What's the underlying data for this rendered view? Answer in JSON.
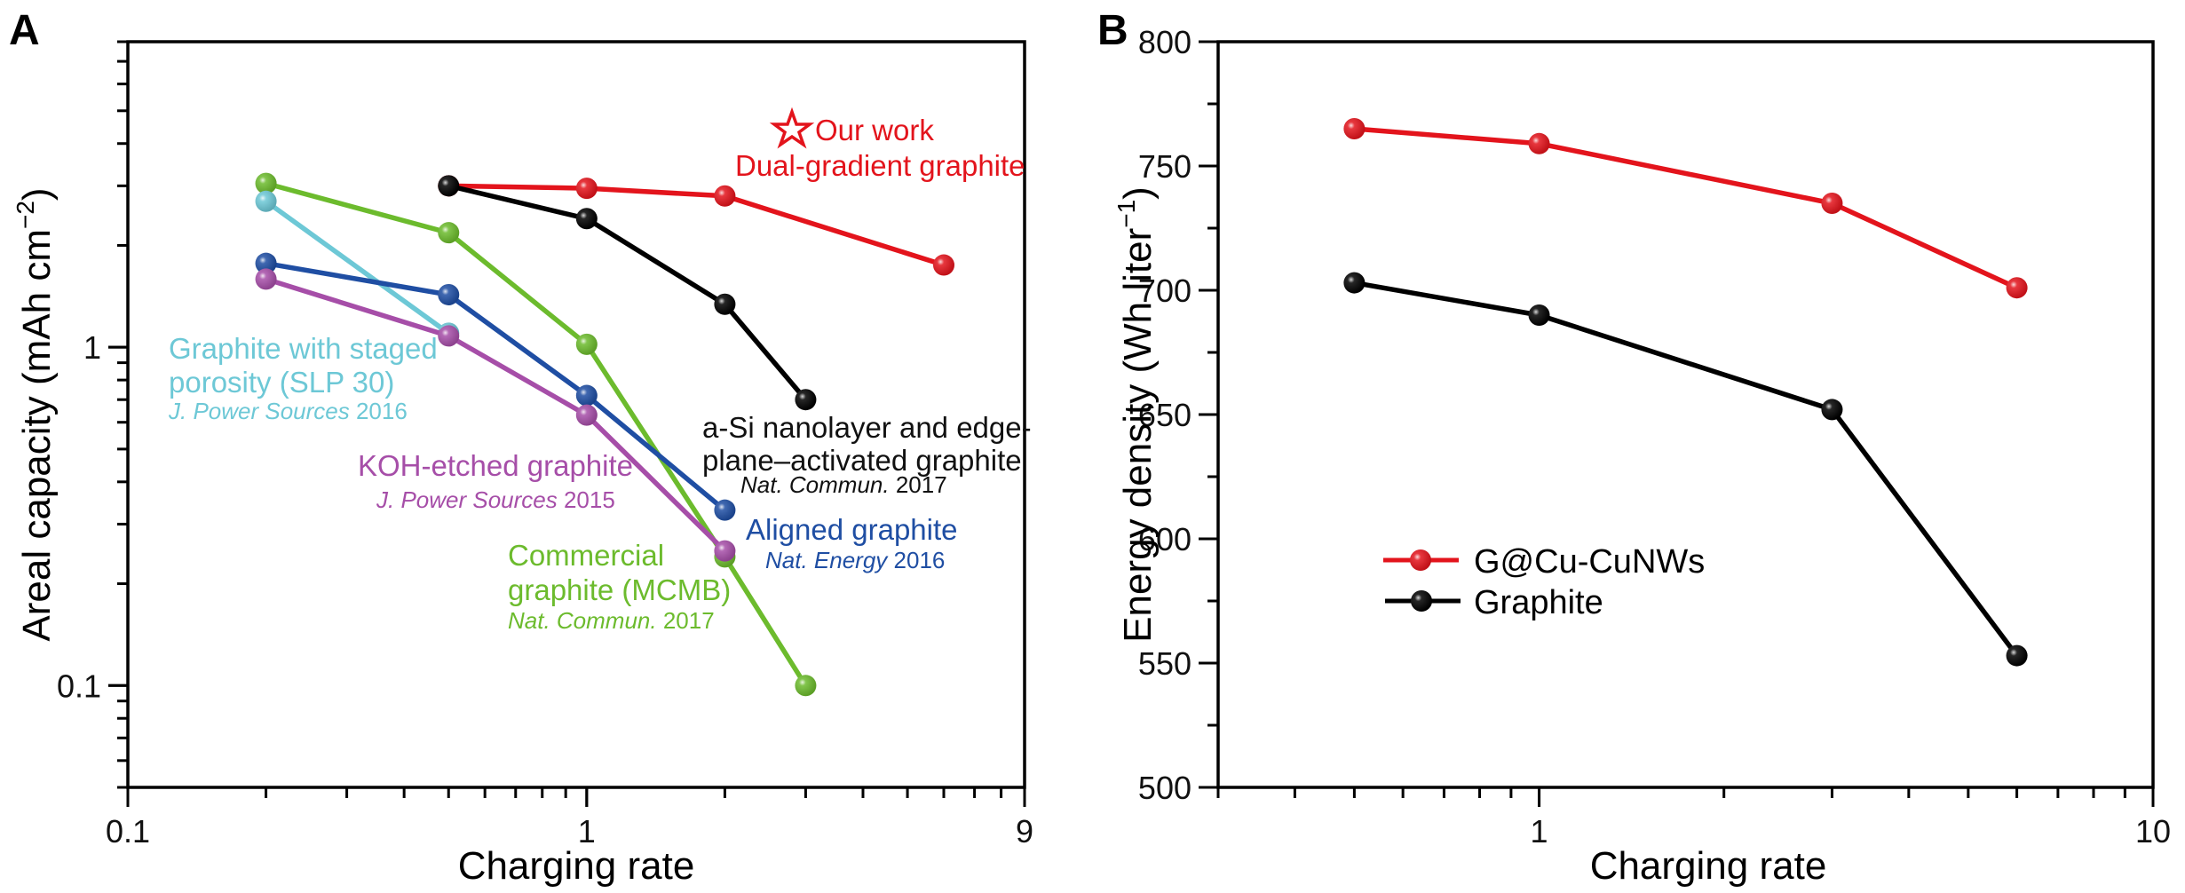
{
  "figure": {
    "panels": [
      "A",
      "B"
    ]
  },
  "chart_data": [
    {
      "panel": "A",
      "type": "line",
      "title": "",
      "xlabel": "Charging rate",
      "ylabel": "Areal capacity (mAh cm",
      "ylabel_sup": "−2",
      "ylabel_close": ")",
      "xscale": "log",
      "yscale": "log",
      "xlim": [
        0.1,
        9
      ],
      "ylim": [
        0.05,
        8
      ],
      "xticks": [
        {
          "value": 0.1,
          "label": "0.1"
        },
        {
          "value": 1,
          "label": "1"
        },
        {
          "value": 9,
          "label": "9"
        }
      ],
      "yticks": [
        {
          "value": 0.1,
          "label": "0.1"
        },
        {
          "value": 1,
          "label": "1"
        }
      ],
      "grid": false,
      "series": [
        {
          "name": "Dual-gradient graphite (Our work)",
          "color": "#e3141c",
          "x": [
            0.5,
            1,
            2,
            6
          ],
          "y": [
            3.0,
            2.95,
            2.8,
            1.75
          ]
        },
        {
          "name": "a-Si nanolayer and edge-plane–activated graphite",
          "color": "#000000",
          "x": [
            0.5,
            1,
            2,
            3
          ],
          "y": [
            3.0,
            2.4,
            1.34,
            0.7
          ]
        },
        {
          "name": "Commercial graphite (MCMB)",
          "color": "#6cbb2d",
          "x": [
            0.2,
            0.5,
            1,
            2,
            3
          ],
          "y": [
            3.05,
            2.18,
            1.02,
            0.24,
            0.1
          ]
        },
        {
          "name": "Graphite with staged porosity (SLP 30)",
          "color": "#6dc8d6",
          "x": [
            0.2,
            0.5
          ],
          "y": [
            2.7,
            1.1
          ]
        },
        {
          "name": "Aligned graphite",
          "color": "#1f4ea3",
          "x": [
            0.2,
            0.5,
            1,
            2
          ],
          "y": [
            1.77,
            1.43,
            0.72,
            0.33
          ]
        },
        {
          "name": "KOH-etched graphite",
          "color": "#a64ea8",
          "x": [
            0.2,
            0.5,
            1,
            2
          ],
          "y": [
            1.59,
            1.08,
            0.63,
            0.25
          ]
        }
      ],
      "annotations": [
        {
          "id": "our-work",
          "lines": [
            "Our work",
            "Dual-gradient graphite"
          ],
          "ref_italic": "",
          "ref_year": "",
          "color": "#e3141c",
          "star": true
        },
        {
          "id": "asi",
          "lines": [
            "a-Si nanolayer and edge-",
            "plane–activated graphite"
          ],
          "ref_italic": "Nat. Commun.",
          "ref_year": " 2017",
          "color": "#111111"
        },
        {
          "id": "slp30",
          "lines": [
            "Graphite with staged",
            "porosity (SLP 30)"
          ],
          "ref_italic": "J. Power Sources",
          "ref_year": " 2016",
          "color": "#6dc8d6"
        },
        {
          "id": "koh",
          "lines": [
            "KOH-etched graphite"
          ],
          "ref_italic": "J. Power Sources",
          "ref_year": " 2015",
          "color": "#a64ea8"
        },
        {
          "id": "aligned",
          "lines": [
            "Aligned graphite"
          ],
          "ref_italic": "Nat. Energy",
          "ref_year": " 2016",
          "color": "#1f4ea3"
        },
        {
          "id": "mcmb",
          "lines": [
            "Commercial",
            "graphite (MCMB)"
          ],
          "ref_italic": "Nat. Commun.",
          "ref_year": " 2017",
          "color": "#6cbb2d"
        }
      ]
    },
    {
      "panel": "B",
      "type": "line",
      "title": "",
      "xlabel": "Charging rate",
      "ylabel": "Energy density (Wh liter",
      "ylabel_sup": "−1",
      "ylabel_close": ")",
      "xscale": "log",
      "yscale": "linear",
      "xlim": [
        0.3,
        10
      ],
      "ylim": [
        500,
        800
      ],
      "xticks": [
        {
          "value": 1,
          "label": "1"
        },
        {
          "value": 10,
          "label": "10"
        }
      ],
      "yticks": [
        {
          "value": 500,
          "label": "500"
        },
        {
          "value": 550,
          "label": "550"
        },
        {
          "value": 600,
          "label": "600"
        },
        {
          "value": 650,
          "label": "650"
        },
        {
          "value": 700,
          "label": "700"
        },
        {
          "value": 750,
          "label": "750"
        },
        {
          "value": 800,
          "label": "800"
        }
      ],
      "grid": false,
      "legend_position": "center-left",
      "series": [
        {
          "name": "G@Cu-CuNWs",
          "color": "#e3141c",
          "x": [
            0.5,
            1,
            3,
            6
          ],
          "y": [
            765,
            759,
            735,
            701
          ]
        },
        {
          "name": "Graphite",
          "color": "#000000",
          "x": [
            0.5,
            1,
            3,
            6
          ],
          "y": [
            703,
            690,
            652,
            553
          ]
        }
      ]
    }
  ]
}
